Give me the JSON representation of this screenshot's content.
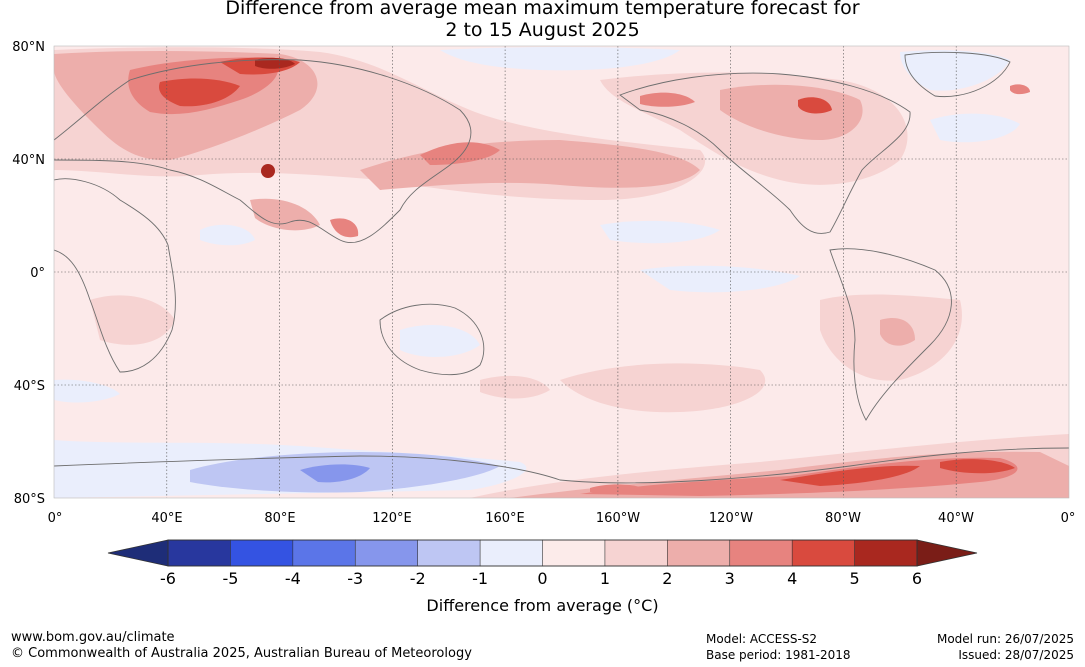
{
  "title": {
    "line1": "Difference from average mean maximum temperature forecast for",
    "line2": "2 to 15 August 2025"
  },
  "map": {
    "lat_labels": [
      "80°N",
      "40°N",
      "0°",
      "40°S",
      "80°S"
    ],
    "lat_values": [
      80,
      40,
      0,
      -40,
      -80
    ],
    "lon_labels": [
      "0°",
      "40°E",
      "80°E",
      "120°E",
      "160°E",
      "160°W",
      "120°W",
      "80°W",
      "40°W",
      "0°"
    ],
    "lon_values": [
      0,
      40,
      80,
      120,
      160,
      200,
      240,
      280,
      320,
      360
    ],
    "gridlines": true,
    "background_color": "#fceaea"
  },
  "colorbar": {
    "ticks": [
      "-6",
      "-5",
      "-4",
      "-3",
      "-2",
      "-1",
      "0",
      "1",
      "2",
      "3",
      "4",
      "5",
      "6"
    ],
    "colors": [
      "#28379e",
      "#3453e2",
      "#5b75e8",
      "#8696ec",
      "#bec6f3",
      "#eaeefc",
      "#fcebea",
      "#f6d3d2",
      "#edaeab",
      "#e7837f",
      "#d94a3e",
      "#a9281f"
    ],
    "under_color": "#1e2d78",
    "over_color": "#7a1d17",
    "label": "Difference from average (°C)"
  },
  "footer": {
    "website": "www.bom.gov.au/climate",
    "copyright": "© Commonwealth of Australia 2025, Australian Bureau of Meteorology",
    "model": "Model: ACCESS-S2",
    "base_period": "Base period: 1981-2018",
    "model_run": "Model run: 26/07/2025",
    "issued": "Issued: 28/07/2025"
  }
}
